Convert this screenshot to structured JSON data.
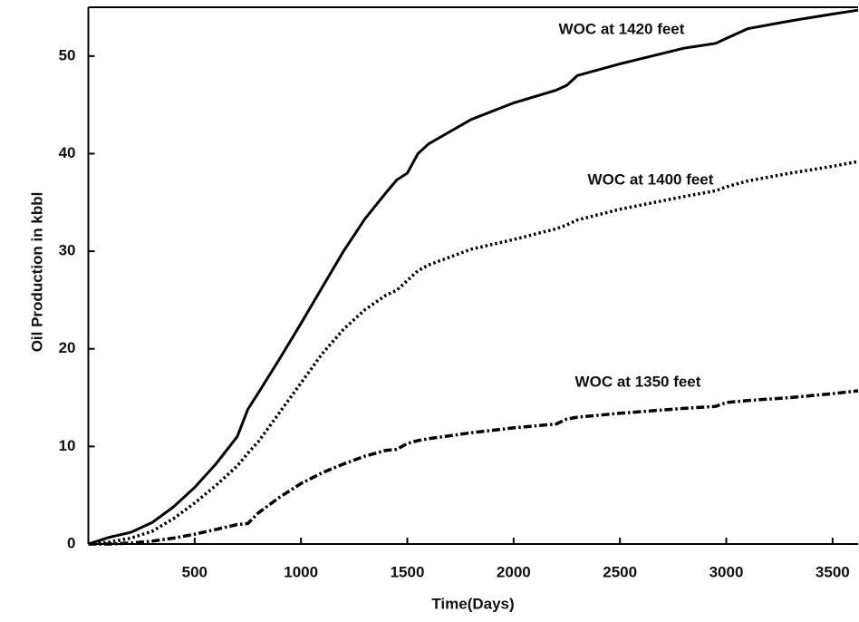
{
  "chart_data": {
    "type": "line",
    "xlabel": "Time(Days)",
    "ylabel": "Oil Production in kbbl",
    "x": [
      0,
      100,
      200,
      300,
      400,
      500,
      600,
      700,
      750,
      800,
      900,
      1000,
      1100,
      1200,
      1300,
      1400,
      1450,
      1500,
      1550,
      1600,
      1800,
      2000,
      2200,
      2250,
      2300,
      2500,
      2800,
      2950,
      3000,
      3100,
      3300,
      3500,
      3620
    ],
    "series": [
      {
        "name": "WOC at 1420 feet",
        "color": "#000000",
        "style": "solid",
        "values": [
          0,
          0.7,
          1.2,
          2.2,
          3.8,
          5.8,
          8.2,
          11,
          13.8,
          15.5,
          19,
          22.6,
          26.3,
          30,
          33.3,
          36,
          37.3,
          38,
          40,
          41,
          43.5,
          45.2,
          46.5,
          47,
          48,
          49.2,
          50.8,
          51.3,
          51.8,
          52.8,
          53.6,
          54.3,
          54.7
        ]
      },
      {
        "name": "WOC at 1400 feet",
        "color": "#000000",
        "style": "dotted",
        "values": [
          0,
          0.2,
          0.6,
          1.3,
          2.6,
          4.2,
          6,
          8,
          9.3,
          10.5,
          13.5,
          16.5,
          19.5,
          22,
          24,
          25.5,
          26,
          27,
          28,
          28.6,
          30.2,
          31.2,
          32.3,
          32.7,
          33.2,
          34.3,
          35.6,
          36.2,
          36.6,
          37.2,
          38,
          38.7,
          39.2
        ]
      },
      {
        "name": "WOC at 1350 feet",
        "color": "#000000",
        "style": "dashdot",
        "values": [
          0,
          0,
          0.1,
          0.3,
          0.6,
          1,
          1.5,
          2,
          2.1,
          3.2,
          4.8,
          6.2,
          7.3,
          8.2,
          9,
          9.6,
          9.7,
          10.3,
          10.6,
          10.8,
          11.4,
          11.9,
          12.3,
          12.8,
          13,
          13.4,
          13.9,
          14.1,
          14.5,
          14.7,
          15,
          15.4,
          15.7
        ]
      }
    ],
    "xlim": [
      0,
      3620
    ],
    "ylim": [
      0,
      55
    ],
    "xticks": [
      500,
      1000,
      1500,
      2000,
      2500,
      3000,
      3500
    ],
    "yticks": [
      0,
      10,
      20,
      30,
      40,
      50
    ]
  }
}
